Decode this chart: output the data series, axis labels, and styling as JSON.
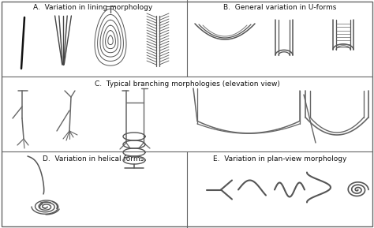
{
  "title_A": "A.  Variation in lining morphology",
  "title_B": "B.  General variation in U-forms",
  "title_C": "C.  Typical branching morphologies (elevation view)",
  "title_D": "D.  Variation in helical forms",
  "title_E": "E.  Variation in plan-view morphology",
  "font_size": 6.5,
  "line_color": "#555555",
  "border_color": "#666666"
}
